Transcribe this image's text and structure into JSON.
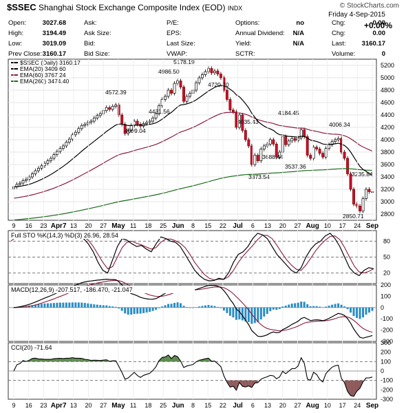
{
  "header": {
    "symbol": "$SSEC",
    "name": "Shanghai Stock Exchange Composite Index (EOD)",
    "exchange": "INDX",
    "source": "© StockCharts.com",
    "date": "Friday  4-Sep-2015",
    "change_pct": "+0.00%"
  },
  "quote": {
    "rows": [
      [
        {
          "label": "Open:",
          "value": "3027.68"
        },
        {
          "label": "Ask:",
          "value": ""
        },
        {
          "label": "P/E:",
          "value": ""
        },
        {
          "label": "Options:",
          "value": "no"
        },
        {
          "label": "Chg:",
          "value": "0.00"
        }
      ],
      [
        {
          "label": "High:",
          "value": "3194.49"
        },
        {
          "label": "Ask Size:",
          "value": ""
        },
        {
          "label": "EPS:",
          "value": ""
        },
        {
          "label": "Annual Dividend:",
          "value": "N/A"
        },
        {
          "label": "Chg:",
          "value": "0.00"
        }
      ],
      [
        {
          "label": "Low:",
          "value": "3019.09"
        },
        {
          "label": "Bid:",
          "value": ""
        },
        {
          "label": "Last Size:",
          "value": ""
        },
        {
          "label": "Yield:",
          "value": "N/A"
        },
        {
          "label": "Last:",
          "value": "3160.17"
        }
      ],
      [
        {
          "label": "Prev Close:",
          "value": "3160.17"
        },
        {
          "label": "Bid Size:",
          "value": ""
        },
        {
          "label": "VWAP:",
          "value": ""
        },
        {
          "label": "SCTR:",
          "value": ""
        },
        {
          "label": "Volume:",
          "value": "0"
        }
      ]
    ]
  },
  "chart_data": [
    {
      "type": "candlestick",
      "title": "$SSEC (Daily) 3160.17",
      "legend": [
        "$SSEC (Daily) 3160.17",
        "EMA(20) 3409.60",
        "EMA(60) 3767.24",
        "EMA(260) 3474.40"
      ],
      "ylim": [
        2700,
        5300
      ],
      "yticks": [
        2800,
        3000,
        3200,
        3400,
        3600,
        3800,
        4000,
        4200,
        4400,
        4600,
        4800,
        5000,
        5200
      ],
      "x_labels": [
        "9",
        "16",
        "23",
        "Apr7",
        "13",
        "20",
        "27",
        "May",
        "11",
        "18",
        "25",
        "Jun",
        "8",
        "15",
        "22",
        "Jul",
        "6",
        "13",
        "20",
        "27",
        "Aug",
        "10",
        "17",
        "24",
        "Sep"
      ],
      "annotations": [
        "5178.19",
        "4986.50",
        "4720.70",
        "4572.39",
        "4431.56",
        "4099.04",
        "4184.45",
        "4035.43",
        "4006.34",
        "3688.44",
        "3537.36",
        "3373.54",
        "3235.84",
        "2850.71"
      ],
      "close": [
        3240,
        3280,
        3300,
        3340,
        3360,
        3400,
        3450,
        3500,
        3540,
        3580,
        3620,
        3660,
        3700,
        3760,
        3810,
        3860,
        3900,
        3960,
        4010,
        4080,
        4120,
        4180,
        4230,
        4250,
        4280,
        4300,
        4350,
        4390,
        4420,
        4470,
        4520,
        4490,
        4540,
        4560,
        4400,
        4250,
        4100,
        4150,
        4230,
        4300,
        4250,
        4220,
        4260,
        4280,
        4300,
        4350,
        4420,
        4550,
        4650,
        4700,
        4800,
        4750,
        4910,
        4950,
        4850,
        4620,
        4700,
        4750,
        4800,
        4920,
        5000,
        5050,
        5100,
        5150,
        5080,
        5110,
        5060,
        5000,
        4800,
        4650,
        4480,
        4450,
        4200,
        4400,
        4150,
        4000,
        3900,
        3600,
        3750,
        3660,
        3850,
        3900,
        3930,
        4000,
        3930,
        3720,
        3800,
        4050,
        3920,
        3980,
        4020,
        3990,
        4030,
        4160,
        4050,
        3750,
        3700,
        3880,
        3850,
        3780,
        3720,
        3860,
        3920,
        3970,
        4000,
        4020,
        3800,
        3700,
        3450,
        3200,
        2960,
        2930,
        2850,
        3050,
        3200,
        3160,
        3160
      ],
      "series": [
        {
          "name": "EMA(20)",
          "end_value": 3409.6
        },
        {
          "name": "EMA(60)",
          "end_value": 3767.24
        },
        {
          "name": "EMA(260)",
          "end_value": 3474.4
        }
      ]
    },
    {
      "type": "line",
      "title": "Full STO %K(14,3) %D(3) 26.96, 28.54",
      "ylim": [
        0,
        100
      ],
      "yticks": [
        20,
        50,
        80
      ],
      "series": [
        {
          "name": "%K",
          "end_value": 26.96,
          "values": [
            85,
            92,
            95,
            94,
            92,
            90,
            93,
            95,
            93,
            91,
            92,
            95,
            96,
            94,
            90,
            85,
            75,
            60,
            40,
            25,
            20,
            45,
            70,
            85,
            82,
            75,
            70,
            72,
            65,
            60,
            75,
            88,
            85,
            80,
            78,
            70,
            55,
            40,
            25,
            15,
            8,
            5,
            6,
            10,
            8,
            20,
            40,
            55,
            60,
            70,
            85,
            95,
            92,
            85,
            70,
            55,
            45,
            35,
            25,
            20,
            30,
            50,
            65,
            75,
            80,
            90,
            95,
            85,
            70,
            50,
            30,
            20,
            15,
            25,
            30,
            28
          ]
        },
        {
          "name": "%D",
          "end_value": 28.54,
          "values": [
            80,
            88,
            92,
            94,
            93,
            91,
            92,
            93,
            93,
            92,
            92,
            93,
            94,
            94,
            92,
            88,
            82,
            70,
            55,
            40,
            28,
            32,
            50,
            68,
            78,
            80,
            76,
            73,
            69,
            65,
            68,
            78,
            84,
            84,
            81,
            76,
            68,
            55,
            40,
            28,
            17,
            10,
            7,
            8,
            8,
            13,
            25,
            40,
            52,
            62,
            72,
            83,
            91,
            91,
            85,
            72,
            58,
            45,
            35,
            27,
            25,
            35,
            48,
            62,
            73,
            82,
            89,
            90,
            83,
            68,
            50,
            33,
            22,
            20,
            23,
            28
          ]
        }
      ]
    },
    {
      "type": "line",
      "title": "MACD(12,26,9) -207.517, -186.470, -21.047",
      "ylim": [
        -300,
        200
      ],
      "yticks": [
        -300,
        -200,
        -100,
        0,
        100,
        200
      ],
      "series": [
        {
          "name": "MACD",
          "end_value": -207.517
        },
        {
          "name": "Signal",
          "end_value": -186.47
        },
        {
          "name": "Histogram",
          "end_value": -21.047
        }
      ]
    },
    {
      "type": "line",
      "title": "CCI(20) -71.64",
      "ylim": [
        -300,
        300
      ],
      "yticks": [
        -300,
        -200,
        -100,
        0,
        100,
        200,
        300
      ],
      "series": [
        {
          "name": "CCI",
          "end_value": -71.64
        }
      ]
    }
  ]
}
